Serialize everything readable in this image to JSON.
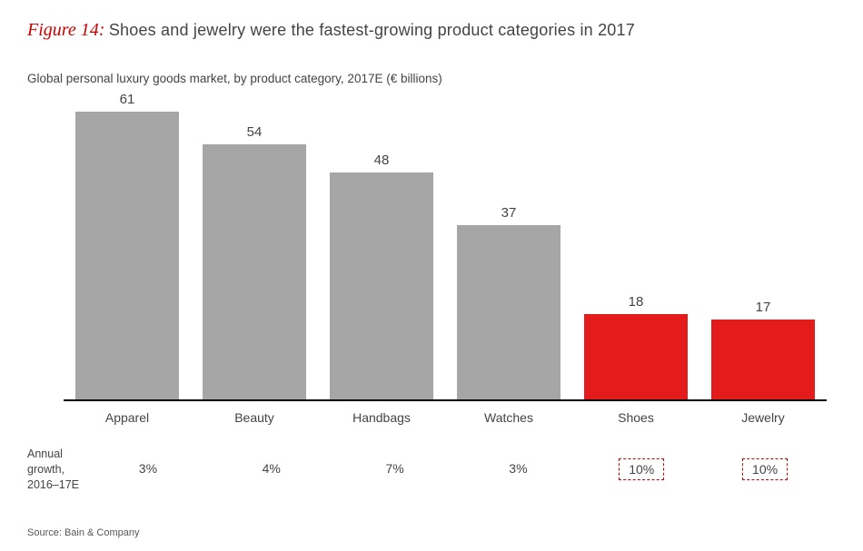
{
  "figure_label": "Figure 14:",
  "title": "Shoes and jewelry were the fastest-growing product categories in 2017",
  "subtitle": "Global personal luxury goods market, by product category, 2017E (€ billions)",
  "chart": {
    "type": "bar",
    "y_max": 65,
    "bar_default_color": "#a6a6a6",
    "bar_highlight_color": "#e41b1b",
    "value_fontsize": 15,
    "category_fontsize": 14,
    "axis_color": "#000000",
    "background_color": "#ffffff",
    "categories": [
      {
        "label": "Apparel",
        "value": 61,
        "growth": "3%",
        "highlight": false
      },
      {
        "label": "Beauty",
        "value": 54,
        "growth": "4%",
        "highlight": false
      },
      {
        "label": "Handbags",
        "value": 48,
        "growth": "7%",
        "highlight": false
      },
      {
        "label": "Watches",
        "value": 37,
        "growth": "3%",
        "highlight": false
      },
      {
        "label": "Shoes",
        "value": 18,
        "growth": "10%",
        "highlight": true
      },
      {
        "label": "Jewelry",
        "value": 17,
        "growth": "10%",
        "highlight": true
      }
    ]
  },
  "growth_row_title": "Annual growth, 2016–17E",
  "source": "Source: Bain & Company",
  "colors": {
    "accent_red": "#cc0000",
    "text": "#444444",
    "dashed_border": "#cc0000"
  }
}
